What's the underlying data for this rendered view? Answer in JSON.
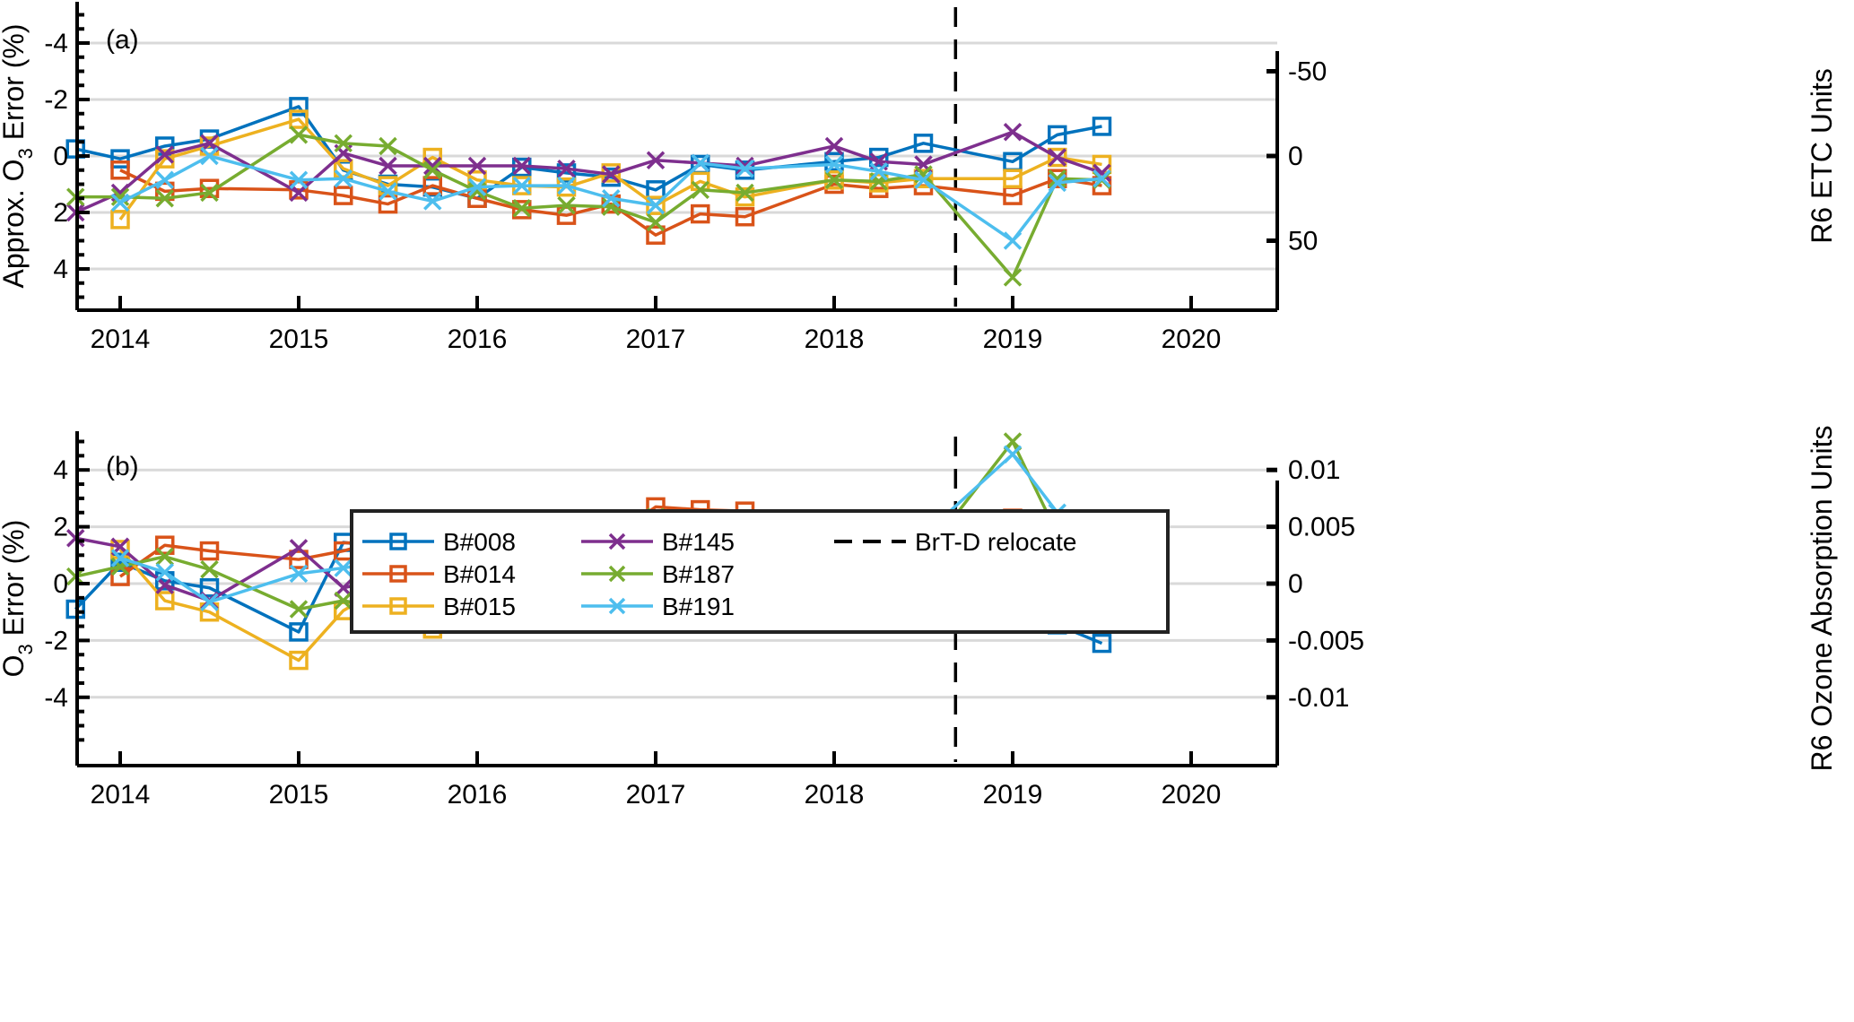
{
  "chart_data": [
    {
      "type": "line",
      "panel_label": "(a)",
      "title": "",
      "xlabel": "",
      "ylabel": "Approx. O3 Error (%)",
      "ylabel_parts": {
        "pre": "Approx. O",
        "sub": "3",
        "post": " Error (%)"
      },
      "y2label": "R6 ETC Units",
      "xlim": [
        2013.76,
        2020.48
      ],
      "ylim": [
        5.4,
        -5.5
      ],
      "y_reversed": true,
      "yticks": [
        -4,
        -2,
        0,
        2,
        4
      ],
      "ytick_labels": [
        "-4",
        "-2",
        "0",
        "2",
        "4"
      ],
      "y2ticks": [
        {
          "value_on_y": -3.0,
          "label": "-50"
        },
        {
          "value_on_y": 0,
          "label": "0"
        },
        {
          "value_on_y": 3.0,
          "label": "50"
        }
      ],
      "xticks": [
        2014,
        2015,
        2016,
        2017,
        2018,
        2019,
        2020
      ],
      "xtick_labels": [
        "2014",
        "2015",
        "2016",
        "2017",
        "2018",
        "2019",
        "2020"
      ],
      "grid": "horizontal",
      "vline": {
        "x": 2018.68,
        "label": "BrT-D relocate",
        "style": "dashed"
      },
      "series": [
        {
          "name": "B#008",
          "color": "#0072BD",
          "marker": "square",
          "x": [
            2013.75,
            2014.0,
            2014.25,
            2014.5,
            2015.0,
            2015.25,
            2015.5,
            2015.75,
            2016.0,
            2016.25,
            2016.5,
            2016.75,
            2017.0,
            2017.25,
            2017.5,
            2018.0,
            2018.25,
            2018.5,
            2019.0,
            2019.25,
            2019.5
          ],
          "y": [
            -0.25,
            0.1,
            -0.35,
            -0.6,
            -1.75,
            0.5,
            1.0,
            1.1,
            1.5,
            0.4,
            0.6,
            0.75,
            1.2,
            0.3,
            0.5,
            0.2,
            0.05,
            -0.45,
            0.2,
            -0.75,
            -1.05
          ]
        },
        {
          "name": "B#014",
          "color": "#D95319",
          "marker": "square",
          "x": [
            2014.0,
            2014.25,
            2014.5,
            2015.0,
            2015.25,
            2015.5,
            2015.75,
            2016.0,
            2016.25,
            2016.5,
            2016.75,
            2017.0,
            2017.25,
            2017.5,
            2018.0,
            2018.25,
            2018.5,
            2019.0,
            2019.25,
            2019.5
          ],
          "y": [
            0.5,
            1.25,
            1.15,
            1.2,
            1.4,
            1.7,
            1.05,
            1.5,
            1.9,
            2.1,
            1.7,
            2.8,
            2.05,
            2.15,
            1.0,
            1.15,
            1.05,
            1.4,
            0.8,
            1.05
          ]
        },
        {
          "name": "B#015",
          "color": "#EDB120",
          "marker": "square",
          "x": [
            2014.0,
            2014.25,
            2014.5,
            2015.0,
            2015.25,
            2015.5,
            2015.75,
            2016.0,
            2016.25,
            2016.5,
            2016.75,
            2017.0,
            2017.25,
            2017.5,
            2018.0,
            2018.25,
            2018.5,
            2019.0,
            2019.25,
            2019.5
          ],
          "y": [
            2.25,
            0.1,
            -0.35,
            -1.3,
            0.45,
            1.05,
            0.05,
            0.85,
            1.05,
            1.1,
            0.6,
            1.75,
            0.9,
            1.45,
            0.85,
            0.95,
            0.8,
            0.8,
            0.05,
            0.3
          ]
        },
        {
          "name": "B#145",
          "color": "#7E2F8E",
          "marker": "x",
          "x": [
            2013.75,
            2014.0,
            2014.25,
            2014.5,
            2015.0,
            2015.25,
            2015.5,
            2015.75,
            2016.0,
            2016.25,
            2016.5,
            2016.75,
            2017.0,
            2017.25,
            2017.5,
            2018.0,
            2018.25,
            2018.5,
            2019.0,
            2019.25,
            2019.5
          ],
          "y": [
            2.0,
            1.3,
            -0.05,
            -0.45,
            1.3,
            -0.1,
            0.35,
            0.35,
            0.35,
            0.35,
            0.45,
            0.65,
            0.15,
            0.25,
            0.35,
            -0.35,
            0.2,
            0.3,
            -0.85,
            0.05,
            0.6
          ]
        },
        {
          "name": "B#187",
          "color": "#77AC30",
          "marker": "x",
          "x": [
            2013.75,
            2014.0,
            2014.25,
            2014.5,
            2015.0,
            2015.25,
            2015.5,
            2015.75,
            2016.0,
            2016.25,
            2016.5,
            2016.75,
            2017.0,
            2017.25,
            2017.5,
            2018.0,
            2018.25,
            2018.5,
            2019.0,
            2019.25,
            2019.5
          ],
          "y": [
            1.45,
            1.45,
            1.5,
            1.3,
            -0.75,
            -0.45,
            -0.35,
            0.5,
            1.25,
            1.85,
            1.75,
            1.8,
            2.35,
            1.2,
            1.3,
            0.85,
            0.9,
            0.65,
            4.3,
            0.8,
            0.85
          ]
        },
        {
          "name": "B#191",
          "color": "#4DBEEE",
          "marker": "x",
          "x": [
            2014.0,
            2014.25,
            2014.5,
            2015.0,
            2015.25,
            2015.5,
            2015.75,
            2016.0,
            2016.25,
            2016.5,
            2016.75,
            2017.0,
            2017.25,
            2017.5,
            2018.0,
            2018.25,
            2018.5,
            2019.0,
            2019.25,
            2019.5
          ],
          "y": [
            1.65,
            0.85,
            0.0,
            0.85,
            0.8,
            1.25,
            1.6,
            1.1,
            1.05,
            1.05,
            1.5,
            1.75,
            0.25,
            0.45,
            0.3,
            0.55,
            0.85,
            3.0,
            0.95,
            0.8
          ]
        }
      ]
    },
    {
      "type": "line",
      "panel_label": "(b)",
      "title": "",
      "xlabel": "",
      "ylabel": "O3 Error (%)",
      "ylabel_parts": {
        "pre": "O",
        "sub": "3",
        "post": " Error (%)"
      },
      "y2label": "R6 Ozone Absorption Units",
      "xlim": [
        2013.76,
        2020.48
      ],
      "ylim": [
        -5.5,
        5.5
      ],
      "y_reversed": false,
      "yticks": [
        -4,
        -2,
        0,
        2,
        4
      ],
      "ytick_labels": [
        "-4",
        "-2",
        "0",
        "2",
        "4"
      ],
      "y2ticks": [
        {
          "value_on_y": -4,
          "label": "-0.01"
        },
        {
          "value_on_y": -2,
          "label": "-0.005"
        },
        {
          "value_on_y": 0,
          "label": "0"
        },
        {
          "value_on_y": 2,
          "label": "0.005"
        },
        {
          "value_on_y": 4,
          "label": "0.01"
        }
      ],
      "xticks": [
        2014,
        2015,
        2016,
        2017,
        2018,
        2019,
        2020
      ],
      "xtick_labels": [
        "2014",
        "2015",
        "2016",
        "2017",
        "2018",
        "2019",
        "2020"
      ],
      "grid": "horizontal",
      "vline": {
        "x": 2018.68,
        "label": "BrT-D relocate",
        "style": "dashed"
      },
      "series": [
        {
          "name": "B#008",
          "color": "#0072BD",
          "marker": "square",
          "x": [
            2013.75,
            2014.0,
            2014.25,
            2014.5,
            2015.0,
            2015.25,
            2015.5,
            2015.75,
            2016.0,
            2016.25,
            2016.5,
            2016.75,
            2017.0,
            2017.25,
            2017.5,
            2018.0,
            2018.25,
            2018.5,
            2019.0,
            2019.25,
            2019.5
          ],
          "y": [
            -0.9,
            0.75,
            0.1,
            -0.15,
            -1.7,
            1.45,
            1.25,
            1.1,
            1.0,
            0.65,
            0.4,
            0.3,
            0.9,
            0.7,
            0.7,
            -0.4,
            -0.05,
            -0.95,
            -0.1,
            -1.45,
            -2.1
          ]
        },
        {
          "name": "B#014",
          "color": "#D95319",
          "marker": "square",
          "x": [
            2014.0,
            2014.25,
            2014.5,
            2015.0,
            2015.25,
            2015.5,
            2015.75,
            2016.0,
            2016.25,
            2016.5,
            2016.75,
            2017.0,
            2017.25,
            2017.5,
            2018.0,
            2018.25,
            2018.5,
            2019.0,
            2019.25,
            2019.5
          ],
          "y": [
            0.25,
            1.35,
            1.15,
            0.85,
            1.15,
            1.6,
            0.25,
            1.55,
            2.25,
            2.05,
            1.6,
            2.7,
            2.6,
            2.55,
            1.3,
            1.95,
            1.15,
            2.3,
            1.1,
            0.95
          ]
        },
        {
          "name": "B#015",
          "color": "#EDB120",
          "marker": "square",
          "x": [
            2014.0,
            2014.25,
            2014.5,
            2015.0,
            2015.25,
            2015.5,
            2015.75,
            2016.0,
            2016.25,
            2016.5,
            2016.75,
            2017.0,
            2017.25,
            2017.5,
            2018.0,
            2018.25,
            2018.5,
            2019.0,
            2019.25,
            2019.5
          ],
          "y": [
            1.2,
            -0.6,
            -1.0,
            -2.7,
            -0.95,
            -0.05,
            -1.6,
            -0.3,
            0.5,
            0.4,
            -0.4,
            0.85,
            0.6,
            1.0,
            0.1,
            1.35,
            0.75,
            1.05,
            -0.15,
            -0.2
          ]
        },
        {
          "name": "B#145",
          "color": "#7E2F8E",
          "marker": "x",
          "x": [
            2013.75,
            2014.0,
            2014.25,
            2014.5,
            2015.0,
            2015.25,
            2015.5,
            2015.75,
            2016.0,
            2016.25,
            2016.5,
            2016.75,
            2017.0,
            2017.25,
            2017.5,
            2018.0,
            2018.25,
            2018.5,
            2019.0,
            2019.25,
            2019.5
          ],
          "y": [
            1.6,
            1.3,
            -0.05,
            -0.6,
            1.25,
            -0.15,
            0.2,
            0.2,
            0.2,
            0.15,
            0.05,
            0.25,
            -0.75,
            0.15,
            0.35,
            -0.55,
            0.35,
            0.15,
            -0.1,
            0.3,
            0.15
          ]
        },
        {
          "name": "B#187",
          "color": "#77AC30",
          "marker": "x",
          "x": [
            2013.75,
            2014.0,
            2014.25,
            2014.5,
            2015.0,
            2015.25,
            2015.5,
            2015.75,
            2016.0,
            2016.25,
            2016.5,
            2016.75,
            2017.0,
            2017.25,
            2017.5,
            2018.0,
            2018.25,
            2018.5,
            2019.0,
            2019.25,
            2019.5
          ],
          "y": [
            0.25,
            0.6,
            0.95,
            0.5,
            -0.9,
            -0.6,
            -0.9,
            0.3,
            1.0,
            2.25,
            1.9,
            1.8,
            2.35,
            2.0,
            1.95,
            1.3,
            1.85,
            0.95,
            5.0,
            1.75,
            0.9
          ]
        },
        {
          "name": "B#191",
          "color": "#4DBEEE",
          "marker": "x",
          "x": [
            2014.0,
            2014.25,
            2014.5,
            2015.0,
            2015.25,
            2015.5,
            2015.75,
            2016.0,
            2016.25,
            2016.5,
            2016.75,
            2017.0,
            2017.25,
            2017.5,
            2018.0,
            2018.25,
            2018.5,
            2019.0,
            2019.25,
            2019.5
          ],
          "y": [
            0.9,
            0.4,
            -0.65,
            0.35,
            0.55,
            0.8,
            0.6,
            0.95,
            1.35,
            0.85,
            1.1,
            1.45,
            0.85,
            1.0,
            1.3,
            2.0,
            1.7,
            4.55,
            2.5,
            1.05
          ]
        }
      ]
    }
  ],
  "legend": {
    "placement": "top-left-of-panel-b",
    "entries": [
      {
        "label": "B#008",
        "color": "#0072BD",
        "marker": "square",
        "style": "solid"
      },
      {
        "label": "B#014",
        "color": "#D95319",
        "marker": "square",
        "style": "solid"
      },
      {
        "label": "B#015",
        "color": "#EDB120",
        "marker": "square",
        "style": "solid"
      },
      {
        "label": "B#145",
        "color": "#7E2F8E",
        "marker": "x",
        "style": "solid"
      },
      {
        "label": "B#187",
        "color": "#77AC30",
        "marker": "x",
        "style": "solid"
      },
      {
        "label": "B#191",
        "color": "#4DBEEE",
        "marker": "x",
        "style": "solid"
      },
      {
        "label": "BrT-D relocate",
        "color": "#000000",
        "marker": "none",
        "style": "dashed"
      }
    ]
  },
  "colors": {
    "grid": "#d9d9d9",
    "axis": "#000000",
    "background": "#ffffff"
  }
}
